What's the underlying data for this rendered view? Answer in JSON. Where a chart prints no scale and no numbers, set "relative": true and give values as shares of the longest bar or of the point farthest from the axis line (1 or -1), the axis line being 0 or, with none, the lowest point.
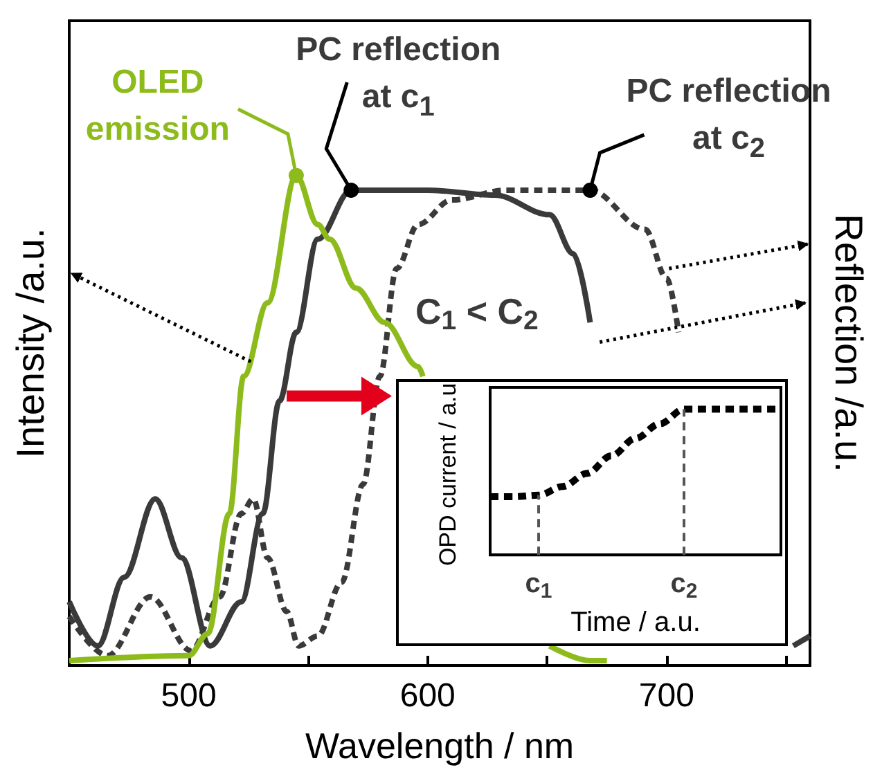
{
  "chart_data": [
    {
      "type": "line",
      "xlabel": "Wavelength / nm",
      "ylabel": "Intensity /a.u.",
      "y2label": "Reflection /a.u.",
      "relative": true,
      "xlim": [
        450,
        760
      ],
      "xticks": [
        500,
        {
          "value": 550,
          "label": null
        },
        600,
        {
          "value": 650,
          "label": null
        },
        700,
        {
          "value": 750,
          "label": null
        }
      ],
      "grid": false,
      "legend": false,
      "annotations": [
        "C$_{1}$ < C$_{2}$"
      ],
      "series": [
        {
          "name": "OLED emission",
          "color": "#8dbb1c",
          "x": [
            450,
            500,
            508,
            517,
            523,
            533,
            545,
            554,
            559,
            570,
            582,
            596,
            598,
            617,
            633,
            651,
            668,
            675
          ],
          "values": [
            0.01,
            0.02,
            0.065,
            0.31,
            0.59,
            0.74,
            1,
            0.9,
            0.87,
            0.77,
            0.7,
            0.61,
            0.59,
            null,
            null,
            0.04,
            0.01,
            0.01
          ]
        },
        {
          "name": "PC reflection at c$_{1}$",
          "color": "#3a3a3a",
          "line_style": "solid",
          "x": [
            450,
            462,
            473,
            486,
            497,
            509,
            522,
            531,
            538,
            545,
            554,
            568,
            600,
            628,
            651,
            661,
            668,
            670,
            675,
            682,
            688,
            698,
            705,
            712,
            721,
            735,
            753,
            760
          ],
          "values": [
            0.13,
            0.04,
            0.18,
            0.34,
            0.22,
            0.04,
            0.13,
            0.31,
            0.54,
            0.68,
            0.87,
            0.97,
            0.97,
            0.96,
            0.92,
            0.84,
            0.7,
            null,
            null,
            null,
            null,
            null,
            null,
            null,
            null,
            null,
            0.04,
            0.06
          ]
        },
        {
          "name": "PC reflection at c$_{2}$",
          "color": "#3a3a3a",
          "line_style": "dashed",
          "x": [
            450,
            466,
            484,
            501,
            513,
            522,
            527,
            533,
            541,
            546,
            554,
            564,
            573,
            580,
            587,
            596,
            610,
            633,
            668,
            691,
            700,
            705
          ],
          "values": [
            0.1,
            0.02,
            0.14,
            0.03,
            0.14,
            0.31,
            0.34,
            0.22,
            0.11,
            0.04,
            0.06,
            0.17,
            0.37,
            0.59,
            0.81,
            0.9,
            0.95,
            0.97,
            0.97,
            0.89,
            0.79,
            0.68
          ]
        }
      ]
    },
    {
      "type": "line",
      "xlabel": "Time / a.u.",
      "ylabel": "OPD current / a.u.",
      "relative": true,
      "categories": [
        null,
        null,
        "c$_{1}$",
        null,
        null,
        null,
        null,
        null,
        "c$_{2}$",
        null,
        null,
        null,
        null
      ],
      "series": [
        {
          "color": "#000000",
          "line_style": "dashed",
          "values": [
            0.4,
            0.4,
            0.41,
            0.47,
            0.56,
            0.68,
            0.8,
            0.9,
            1,
            1,
            1,
            1,
            1
          ]
        }
      ],
      "ref_lines": [
        {
          "axis": "x",
          "value": "c$_{1}$",
          "line_style": "dashed",
          "color": "#555555"
        },
        {
          "axis": "x",
          "value": "c$_{2}$",
          "line_style": "dashed",
          "color": "#555555"
        }
      ]
    }
  ]
}
